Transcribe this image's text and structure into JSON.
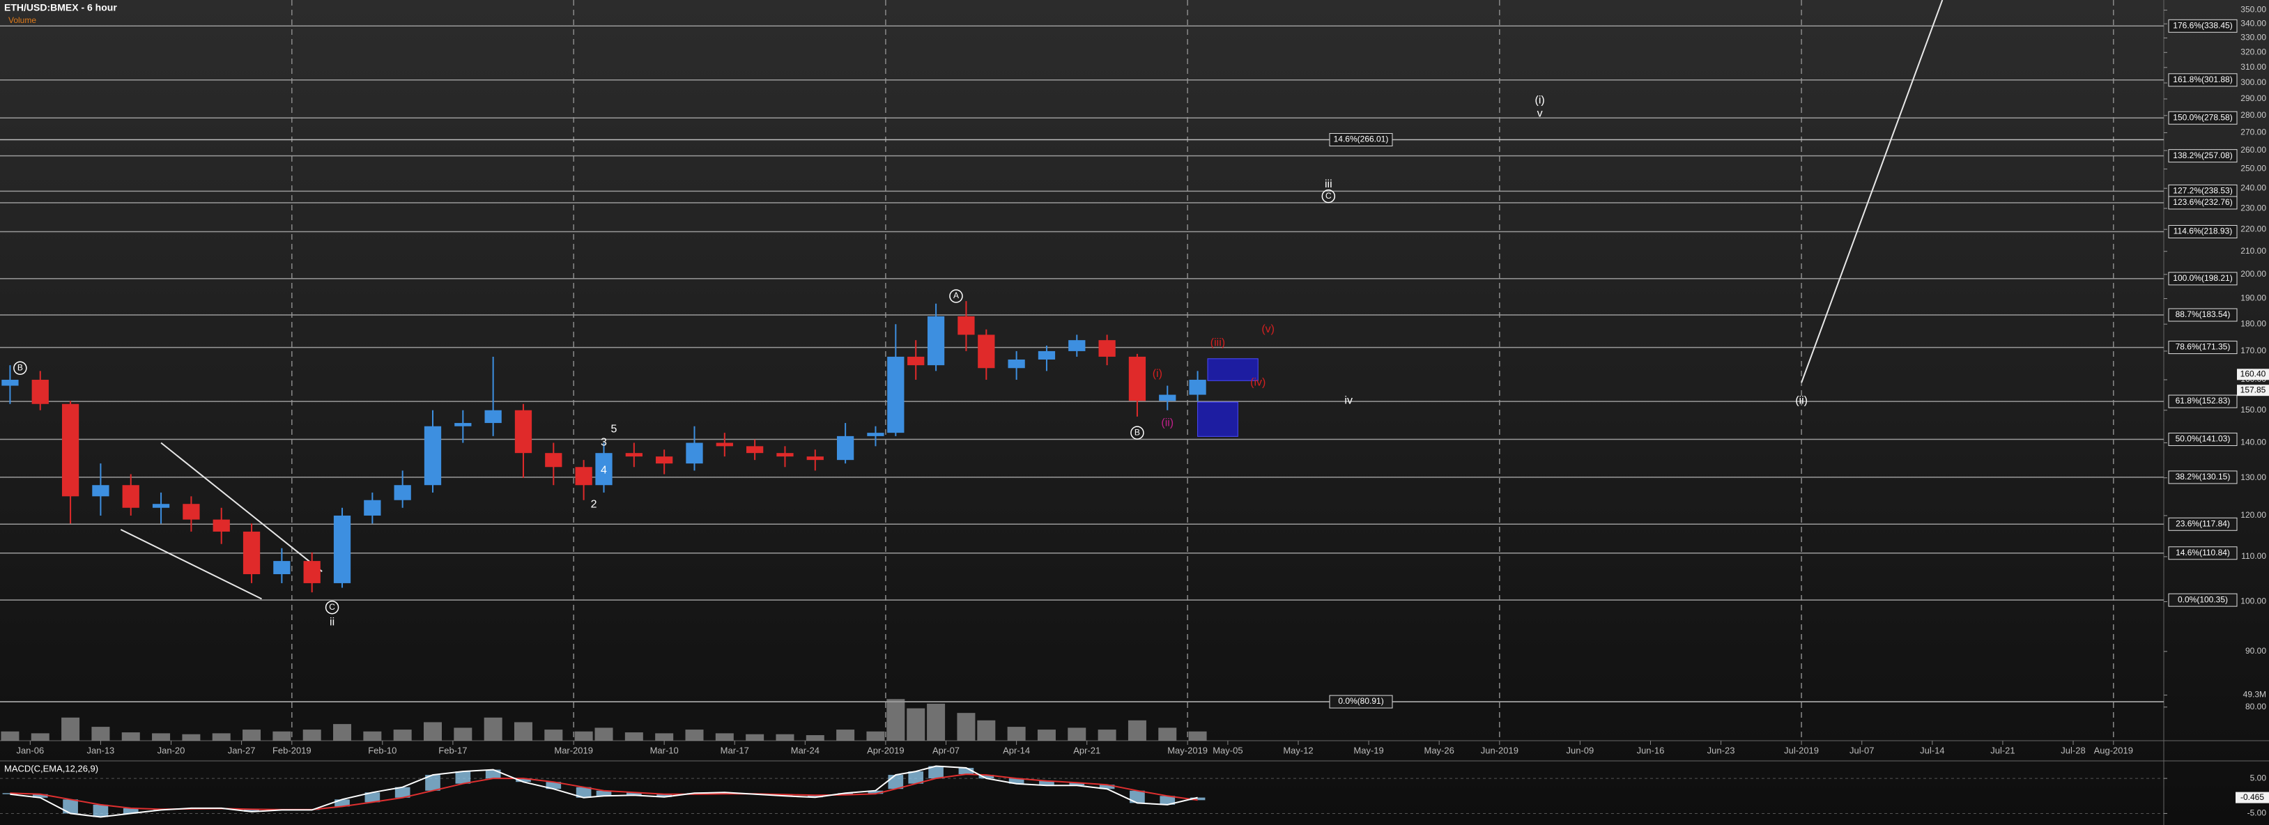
{
  "chart_data": {
    "type": "candlestick",
    "title": "ETH/USD:BMEX - 6 hour",
    "subtitle": "Volume",
    "log": true,
    "up_color": "#3d8fe0",
    "down_color": "#e02a2a",
    "ylim": [
      74.5,
      357.6
    ],
    "yticks": [
      {
        "value": 80,
        "label": "80.00"
      },
      {
        "value": 90,
        "label": "90.00"
      },
      {
        "value": 100,
        "label": "100.00"
      },
      {
        "value": 110,
        "label": "110.00"
      },
      {
        "value": 120,
        "label": "120.00"
      },
      {
        "value": 130,
        "label": "130.00"
      },
      {
        "value": 140,
        "label": "140.00"
      },
      {
        "value": 150,
        "label": "150.00"
      },
      {
        "value": 160,
        "label": "160.00"
      },
      {
        "value": 170,
        "label": "170.00"
      },
      {
        "value": 180,
        "label": "180.00"
      },
      {
        "value": 190,
        "label": "190.00"
      },
      {
        "value": 200,
        "label": "200.00"
      },
      {
        "value": 210,
        "label": "210.00"
      },
      {
        "value": 220,
        "label": "220.00"
      },
      {
        "value": 230,
        "label": "230.00"
      },
      {
        "value": 240,
        "label": "240.00"
      },
      {
        "value": 250,
        "label": "250.00"
      },
      {
        "value": 260,
        "label": "260.00"
      },
      {
        "value": 270,
        "label": "270.00"
      },
      {
        "value": 280,
        "label": "280.00"
      },
      {
        "value": 290,
        "label": "290.00"
      },
      {
        "value": 300,
        "label": "300.00"
      },
      {
        "value": 310,
        "label": "310.00"
      },
      {
        "value": 320,
        "label": "320.00"
      },
      {
        "value": 330,
        "label": "330.00"
      },
      {
        "value": 340,
        "label": "340.00"
      },
      {
        "value": 350,
        "label": "350.00"
      }
    ],
    "xlim": [
      "2019-01-03",
      "2019-08-06"
    ],
    "xticks": [
      {
        "value": "2019-01-06",
        "label": "Jan-06"
      },
      {
        "value": "2019-01-13",
        "label": "Jan-13"
      },
      {
        "value": "2019-01-20",
        "label": "Jan-20"
      },
      {
        "value": "2019-01-27",
        "label": "Jan-27"
      },
      {
        "value": "2019-02-01",
        "label": "Feb-2019"
      },
      {
        "value": "2019-02-10",
        "label": "Feb-10"
      },
      {
        "value": "2019-02-17",
        "label": "Feb-17"
      },
      {
        "value": "2019-03-01",
        "label": "Mar-2019"
      },
      {
        "value": "2019-03-10",
        "label": "Mar-10"
      },
      {
        "value": "2019-03-17",
        "label": "Mar-17"
      },
      {
        "value": "2019-03-24",
        "label": "Mar-24"
      },
      {
        "value": "2019-04-01",
        "label": "Apr-2019"
      },
      {
        "value": "2019-04-07",
        "label": "Apr-07"
      },
      {
        "value": "2019-04-14",
        "label": "Apr-14"
      },
      {
        "value": "2019-04-21",
        "label": "Apr-21"
      },
      {
        "value": "2019-05-01",
        "label": "May-2019"
      },
      {
        "value": "2019-05-05",
        "label": "May-05"
      },
      {
        "value": "2019-05-12",
        "label": "May-12"
      },
      {
        "value": "2019-05-19",
        "label": "May-19"
      },
      {
        "value": "2019-05-26",
        "label": "May-26"
      },
      {
        "value": "2019-06-01",
        "label": "Jun-2019"
      },
      {
        "value": "2019-06-09",
        "label": "Jun-09"
      },
      {
        "value": "2019-06-16",
        "label": "Jun-16"
      },
      {
        "value": "2019-06-23",
        "label": "Jun-23"
      },
      {
        "value": "2019-07-01",
        "label": "Jul-2019"
      },
      {
        "value": "2019-07-07",
        "label": "Jul-07"
      },
      {
        "value": "2019-07-14",
        "label": "Jul-14"
      },
      {
        "value": "2019-07-21",
        "label": "Jul-21"
      },
      {
        "value": "2019-07-28",
        "label": "Jul-28"
      },
      {
        "value": "2019-08-01",
        "label": "Aug-2019"
      }
    ],
    "x": [
      "2019-01-04",
      "2019-01-07",
      "2019-01-10",
      "2019-01-13",
      "2019-01-16",
      "2019-01-19",
      "2019-01-22",
      "2019-01-25",
      "2019-01-28",
      "2019-01-31",
      "2019-02-03",
      "2019-02-06",
      "2019-02-09",
      "2019-02-12",
      "2019-02-15",
      "2019-02-18",
      "2019-02-21",
      "2019-02-24",
      "2019-02-27",
      "2019-03-02",
      "2019-03-04",
      "2019-03-07",
      "2019-03-10",
      "2019-03-13",
      "2019-03-16",
      "2019-03-19",
      "2019-03-22",
      "2019-03-25",
      "2019-03-28",
      "2019-03-31",
      "2019-04-02",
      "2019-04-04",
      "2019-04-06",
      "2019-04-09",
      "2019-04-11",
      "2019-04-14",
      "2019-04-17",
      "2019-04-20",
      "2019-04-23",
      "2019-04-26",
      "2019-04-29",
      "2019-05-02"
    ],
    "open": [
      158,
      160,
      152,
      125,
      128,
      122,
      123,
      119,
      116,
      106,
      109,
      104,
      120,
      124,
      128,
      145,
      146,
      150,
      137,
      133,
      128,
      137,
      136,
      134,
      140,
      139,
      137,
      136,
      135,
      142,
      143,
      168,
      165,
      183,
      176,
      164,
      167,
      170,
      174,
      168,
      153,
      155
    ],
    "high": [
      165,
      163,
      153,
      134,
      131,
      126,
      125,
      122,
      118,
      112,
      111,
      122,
      126,
      132,
      150,
      150,
      168,
      152,
      140,
      135,
      140,
      140,
      138,
      145,
      143,
      141,
      139,
      138,
      146,
      145,
      180,
      174,
      188,
      189,
      178,
      170,
      172,
      176,
      176,
      169,
      158,
      163
    ],
    "low": [
      152,
      150,
      118,
      120,
      120,
      118,
      116,
      113,
      104,
      104,
      102,
      103,
      118,
      122,
      126,
      140,
      142,
      130,
      128,
      124,
      126,
      133,
      131,
      132,
      136,
      135,
      133,
      132,
      134,
      139,
      142,
      160,
      163,
      170,
      160,
      160,
      163,
      168,
      165,
      148,
      150,
      153
    ],
    "close": [
      160,
      152,
      125,
      128,
      122,
      123,
      119,
      116,
      106,
      109,
      104,
      120,
      124,
      128,
      145,
      146,
      150,
      137,
      133,
      128,
      137,
      136,
      134,
      140,
      139,
      137,
      136,
      135,
      142,
      143,
      168,
      165,
      183,
      176,
      164,
      167,
      170,
      174,
      168,
      153,
      155,
      160
    ],
    "volume": [
      10,
      8,
      25,
      15,
      9,
      8,
      7,
      8,
      12,
      10,
      12,
      18,
      10,
      12,
      20,
      14,
      25,
      20,
      12,
      10,
      14,
      9,
      8,
      12,
      8,
      7,
      7,
      6,
      12,
      10,
      45,
      35,
      40,
      30,
      22,
      15,
      12,
      14,
      12,
      22,
      14,
      10
    ],
    "volume_color": "#9a9a9a",
    "volume_ylim": [
      0,
      55
    ],
    "volume_ticks": [
      {
        "value": 49.3,
        "label": "49.3M"
      }
    ],
    "price_labels": [
      {
        "value": 160.4,
        "label": "160.40"
      },
      {
        "value": 157.85,
        "label": "157.85"
      }
    ],
    "fib_levels": [
      {
        "value": 338.45,
        "label": "176.6%(338.45)"
      },
      {
        "value": 301.88,
        "label": "161.8%(301.88)"
      },
      {
        "value": 278.58,
        "label": "150.0%(278.58)"
      },
      {
        "value": 257.08,
        "label": "138.2%(257.08)"
      },
      {
        "value": 238.53,
        "label": "127.2%(238.53)"
      },
      {
        "value": 232.76,
        "label": "123.6%(232.76)"
      },
      {
        "value": 218.93,
        "label": "114.6%(218.93)"
      },
      {
        "value": 198.21,
        "label": "100.0%(198.21)"
      },
      {
        "value": 183.54,
        "label": "88.7%(183.54)"
      },
      {
        "value": 171.35,
        "label": "78.6%(171.35)"
      },
      {
        "value": 152.83,
        "label": "61.8%(152.83)"
      },
      {
        "value": 141.03,
        "label": "50.0%(141.03)"
      },
      {
        "value": 130.15,
        "label": "38.2%(130.15)"
      },
      {
        "value": 117.84,
        "label": "23.6%(117.84)"
      },
      {
        "value": 110.84,
        "label": "14.6%(110.84)"
      },
      {
        "value": 100.35,
        "label": "0.0%(100.35)"
      }
    ],
    "projection_levels": [
      {
        "value": 266.01,
        "label": "14.6%(266.01)"
      },
      {
        "value": 80.91,
        "label": "0.0%(80.91)"
      }
    ],
    "zones": [
      {
        "x": [
          "2019-05-03",
          "2019-05-08"
        ],
        "y": [
          159.7,
          167.3
        ],
        "color": "#1d1db8"
      },
      {
        "x": [
          "2019-05-02",
          "2019-05-06"
        ],
        "y": [
          141.9,
          152.6
        ],
        "color": "#1d1db8"
      }
    ],
    "trend_lines": [
      {
        "x": [
          "2019-01-19",
          "2019-02-04"
        ],
        "y": [
          140,
          106.6
        ]
      },
      {
        "x": [
          "2019-01-15",
          "2019-01-29"
        ],
        "y": [
          116.5,
          100.6
        ]
      },
      {
        "x": [
          "2019-07-01",
          "2019-07-15"
        ],
        "y": [
          159,
          357.6
        ]
      }
    ],
    "annotations": [
      {
        "text": "B",
        "x": "2019-01-05",
        "y": 164,
        "color": "#ffffff",
        "circled": true
      },
      {
        "text": "C",
        "x": "2019-02-05",
        "y": 98.8,
        "color": "#ffffff",
        "circled": true
      },
      {
        "text": "ii",
        "x": "2019-02-05",
        "y": 95.7,
        "color": "#ffffff",
        "circled": false
      },
      {
        "text": "2",
        "x": "2019-03-03",
        "y": 122.8,
        "color": "#ffffff",
        "circled": false
      },
      {
        "text": "3",
        "x": "2019-03-04",
        "y": 140,
        "color": "#ffffff",
        "circled": false
      },
      {
        "text": "4",
        "x": "2019-03-04",
        "y": 132,
        "color": "#ffffff",
        "circled": false
      },
      {
        "text": "5",
        "x": "2019-03-05",
        "y": 144,
        "color": "#ffffff",
        "circled": false
      },
      {
        "text": "A",
        "x": "2019-04-08",
        "y": 191,
        "color": "#ffffff",
        "circled": true
      },
      {
        "text": "B",
        "x": "2019-04-26",
        "y": 143,
        "color": "#ffffff",
        "circled": true
      },
      {
        "text": "(i)",
        "x": "2019-04-28",
        "y": 162,
        "color": "#d42020",
        "circled": false
      },
      {
        "text": "(ii)",
        "x": "2019-04-29",
        "y": 146,
        "color": "#c0208a",
        "circled": false
      },
      {
        "text": "(iii)",
        "x": "2019-05-04",
        "y": 173,
        "color": "#d42020",
        "circled": false
      },
      {
        "text": "(iv)",
        "x": "2019-05-08",
        "y": 159,
        "color": "#d42020",
        "circled": false
      },
      {
        "text": "(v)",
        "x": "2019-05-09",
        "y": 178,
        "color": "#d42020",
        "circled": false
      },
      {
        "text": "iii",
        "x": "2019-05-15",
        "y": 242,
        "color": "#ffffff",
        "circled": false
      },
      {
        "text": "C",
        "x": "2019-05-15",
        "y": 236,
        "color": "#ffffff",
        "circled": true
      },
      {
        "text": "iv",
        "x": "2019-05-17",
        "y": 153,
        "color": "#ffffff",
        "circled": false
      },
      {
        "text": "(i)",
        "x": "2019-06-05",
        "y": 289,
        "color": "#ffffff",
        "circled": false
      },
      {
        "text": "v",
        "x": "2019-06-05",
        "y": 281,
        "color": "#ffffff",
        "circled": false
      },
      {
        "text": "(ii)",
        "x": "2019-07-01",
        "y": 153,
        "color": "#ffffff",
        "circled": false
      }
    ],
    "macd": {
      "title": "MACD(C,EMA,12,26,9)",
      "ylim": [
        -6.7,
        9.2
      ],
      "yticks": [
        {
          "value": 5,
          "label": "5.00"
        },
        {
          "value": -5,
          "label": "-5.00"
        }
      ],
      "values": [
        0.5,
        -0.5,
        -5,
        -6,
        -5,
        -4,
        -3.5,
        -3.5,
        -4.5,
        -4,
        -4,
        -1,
        1,
        2.5,
        6,
        7,
        7.5,
        4,
        2,
        -0.5,
        0,
        0.2,
        -0.3,
        0.8,
        1,
        0.5,
        0,
        -0.4,
        0.8,
        1.5,
        6,
        7,
        8.5,
        8,
        5,
        3.5,
        3,
        3,
        2,
        -2,
        -2.5,
        -0.465
      ],
      "signal": [
        0.8,
        0.5,
        -1,
        -2.5,
        -3.5,
        -3.8,
        -3.7,
        -3.6,
        -3.8,
        -3.9,
        -3.9,
        -3,
        -1.8,
        -0.5,
        1.5,
        3.5,
        5,
        5,
        4,
        2.5,
        1.5,
        1,
        0.5,
        0.5,
        0.6,
        0.6,
        0.4,
        0.2,
        0.3,
        0.6,
        2,
        3.5,
        5,
        6.2,
        6,
        5,
        4.3,
        3.8,
        3.2,
        1.5,
        0,
        -1.2
      ],
      "color": "#ffffff",
      "signal_color": "#e03030",
      "histogram_color": "#8fc6e8"
    }
  }
}
